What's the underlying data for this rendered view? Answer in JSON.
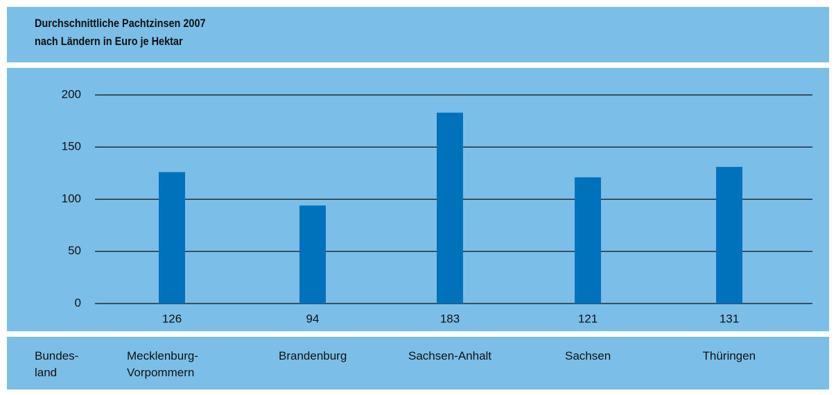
{
  "chart_data": {
    "type": "bar",
    "title": "Durchschnittliche Pachtzinsen 2007",
    "subtitle": "nach Ländern in Euro je Hektar",
    "xlabel": "Bundes-land",
    "categories": [
      "Mecklenburg-Vorpommern",
      "Brandenburg",
      "Sachsen-Anhalt",
      "Sachsen",
      "Thüringen"
    ],
    "values": [
      126,
      94,
      183,
      121,
      131
    ],
    "color": "#0072bc",
    "ylim": [
      0,
      200
    ],
    "yticks": [
      0,
      50,
      100,
      150,
      200
    ],
    "grid": true
  }
}
